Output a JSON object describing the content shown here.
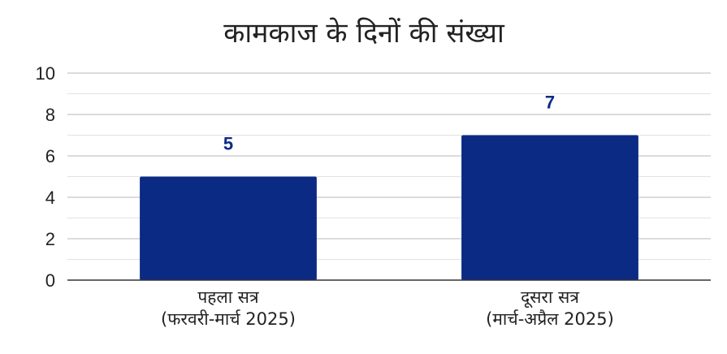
{
  "chart_data": {
    "type": "bar",
    "title": "कामकाज के दिनों की संख्या",
    "categories": [
      [
        "पहला सत्र",
        "(फरवरी-मार्च 2025)"
      ],
      [
        "दूसरा सत्र",
        "(मार्च-अप्रैल 2025)"
      ]
    ],
    "values": [
      5,
      7
    ],
    "data_labels": [
      "5",
      "7"
    ],
    "y_ticks": [
      "0",
      "2",
      "4",
      "6",
      "8",
      "10"
    ],
    "ylim": [
      0,
      10
    ],
    "minor_grid_step": 1,
    "bar_color": "#0b2a84",
    "label_color": "#0b2a84",
    "grid": true,
    "legend": "none"
  }
}
